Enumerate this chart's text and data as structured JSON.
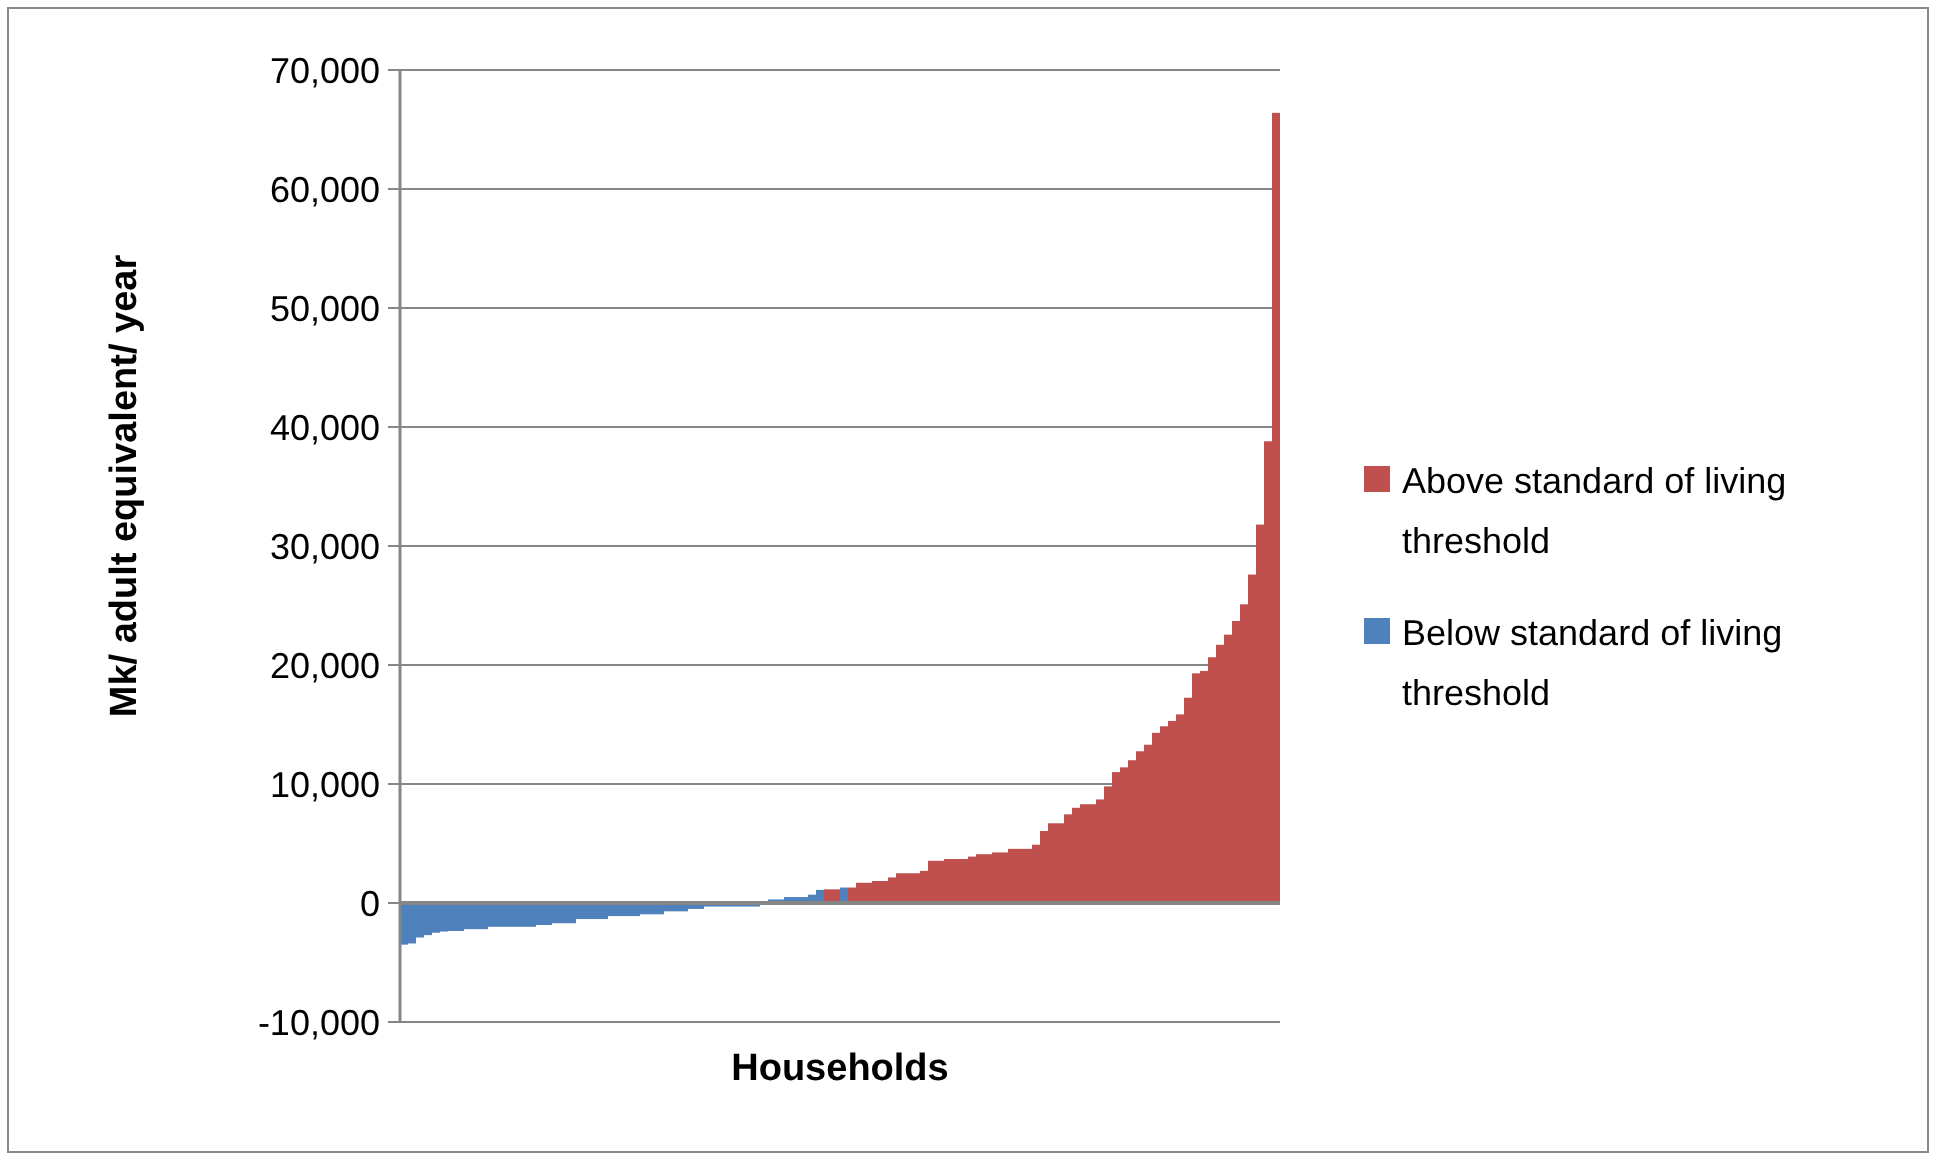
{
  "chart_data": {
    "type": "bar",
    "xlabel": "Households",
    "ylabel": "Mk/ adult equivalent/ year",
    "categories": [
      null,
      null,
      null,
      null,
      null,
      null,
      null,
      null,
      null,
      null,
      null,
      null,
      null,
      null,
      null,
      null,
      null,
      null,
      null,
      null,
      null,
      null,
      null,
      null,
      null,
      null,
      null,
      null,
      null,
      null,
      null,
      null,
      null,
      null,
      null,
      null,
      null,
      null,
      null,
      null,
      null,
      null,
      null,
      null,
      null,
      null,
      null,
      null,
      null,
      null,
      null,
      null,
      null,
      null,
      null,
      null,
      null,
      null,
      null,
      null,
      null,
      null,
      null,
      null,
      null,
      null,
      null,
      null,
      null,
      null,
      null,
      null,
      null,
      null,
      null,
      null,
      null,
      null,
      null,
      null,
      null,
      null,
      null,
      null,
      null,
      null,
      null,
      null,
      null,
      null,
      null,
      null,
      null,
      null,
      null,
      null,
      null,
      null,
      null,
      null,
      null,
      null,
      null,
      null,
      null,
      null,
      null,
      null,
      null,
      null
    ],
    "stacked": true,
    "series": [
      {
        "name": "Above standard of living threshold",
        "color": "#c0504d",
        "values": [
          null,
          null,
          null,
          null,
          null,
          null,
          null,
          null,
          null,
          null,
          null,
          null,
          null,
          null,
          null,
          null,
          null,
          null,
          null,
          null,
          null,
          null,
          null,
          null,
          null,
          null,
          null,
          null,
          null,
          null,
          null,
          null,
          null,
          null,
          null,
          null,
          null,
          null,
          null,
          null,
          null,
          null,
          null,
          null,
          null,
          null,
          null,
          null,
          null,
          null,
          null,
          null,
          null,
          1150,
          1150,
          null,
          1300,
          1700,
          1700,
          1850,
          1850,
          2150,
          2500,
          2500,
          2500,
          2700,
          3550,
          3550,
          3700,
          3700,
          3700,
          3900,
          4100,
          4100,
          4250,
          4250,
          4550,
          4550,
          4550,
          4900,
          6050,
          6700,
          6700,
          7450,
          8000,
          8300,
          8300,
          8700,
          9800,
          11000,
          11400,
          12000,
          12750,
          13300,
          14300,
          14850,
          15300,
          15850,
          17250,
          19300,
          19500,
          20650,
          21700,
          22550,
          23700,
          25100,
          27600,
          31800,
          38800,
          66400
        ]
      },
      {
        "name": "Below standard of living threshold",
        "color": "#4f81bd",
        "values": [
          -3500,
          -3400,
          -2900,
          -2700,
          -2500,
          -2400,
          -2350,
          -2350,
          -2200,
          -2200,
          -2200,
          -2000,
          -2000,
          -2000,
          -2000,
          -2000,
          -2000,
          -1850,
          -1850,
          -1700,
          -1700,
          -1700,
          -1350,
          -1350,
          -1350,
          -1350,
          -1100,
          -1100,
          -1100,
          -1100,
          -950,
          -950,
          -950,
          -700,
          -700,
          -700,
          -500,
          -500,
          -300,
          -300,
          -300,
          -300,
          -300,
          -300,
          -300,
          -150,
          300,
          300,
          500,
          500,
          500,
          700,
          1100,
          null,
          null,
          1300,
          null,
          null,
          null,
          null,
          null,
          null,
          null,
          null,
          null,
          null,
          null,
          null,
          null,
          null,
          null,
          null,
          null,
          null,
          null,
          null,
          null,
          null,
          null,
          null,
          null,
          null,
          null,
          null,
          null,
          null,
          null,
          null,
          null,
          null,
          null,
          null,
          null,
          null,
          null,
          null,
          null,
          null,
          null,
          null,
          null,
          null,
          null,
          null,
          null,
          null,
          null,
          null,
          null,
          null
        ]
      }
    ],
    "ylim": [
      -10000,
      70000
    ],
    "yticks": [
      {
        "value": -10000,
        "label": "-10,000"
      },
      {
        "value": 0,
        "label": "0"
      },
      {
        "value": 10000,
        "label": "10,000"
      },
      {
        "value": 20000,
        "label": "20,000"
      },
      {
        "value": 30000,
        "label": "30,000"
      },
      {
        "value": 40000,
        "label": "40,000"
      },
      {
        "value": 50000,
        "label": "50,000"
      },
      {
        "value": 60000,
        "label": "60,000"
      },
      {
        "value": 70000,
        "label": "70,000"
      }
    ],
    "grid": "y",
    "legend": "right",
    "tick_labels": "y"
  }
}
